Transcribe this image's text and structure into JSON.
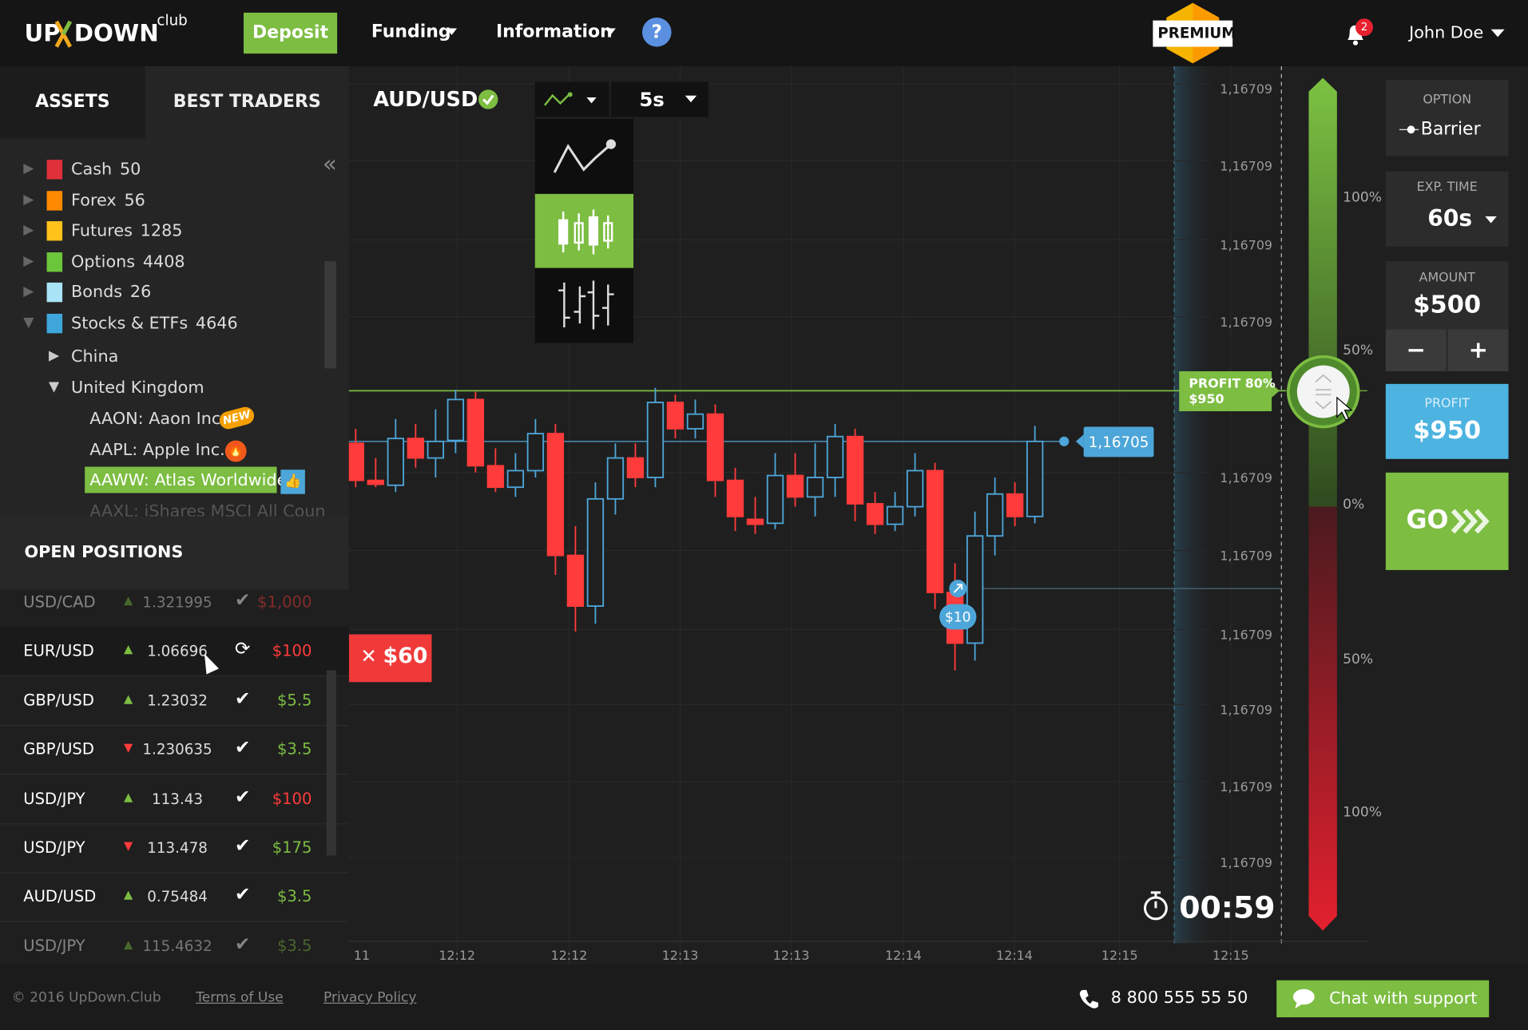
{
  "header": {
    "logo": [
      "UP",
      "DOWN"
    ],
    "logo_suffix": "club",
    "deposit": "Deposit",
    "nav": [
      "Funding",
      "Information"
    ],
    "help": "?",
    "premium": "PREMIUM",
    "notifications": 2,
    "user": "John Doe"
  },
  "sidebar": {
    "tabs": [
      "ASSETS",
      "BEST TRADERS"
    ],
    "categories": [
      {
        "name": "Cash",
        "count": 50,
        "color": "#e0303a"
      },
      {
        "name": "Forex",
        "count": 56,
        "color": "#ff8a00"
      },
      {
        "name": "Futures",
        "count": 1285,
        "color": "#ffc21a"
      },
      {
        "name": "Options",
        "count": 4408,
        "color": "#6cc63c"
      },
      {
        "name": "Bonds",
        "count": 26,
        "color": "#a8e4f5"
      },
      {
        "name": "Stocks & ETFs",
        "count": 4646,
        "color": "#3fa6dc"
      }
    ],
    "regions": [
      "China",
      "United Kingdom"
    ],
    "assets": [
      "AAON: Aaon Inc.",
      "AAPL: Apple Inc.",
      "AAWW: Atlas Worldwide",
      "AAXL: iShares MSCI All Coun"
    ],
    "new_badge": "NEW",
    "positions_title": "OPEN POSITIONS",
    "positions": [
      {
        "pair": "USD/CAD",
        "direction": "up",
        "price": 1.321995,
        "status": "done",
        "amount": "$1,000",
        "color": "#ff3b3b"
      },
      {
        "pair": "EUR/USD",
        "direction": "up",
        "price": 1.06696,
        "status": "pending",
        "amount": "$100",
        "color": "#ff3b3b"
      },
      {
        "pair": "GBP/USD",
        "direction": "up",
        "price": 1.23032,
        "status": "done",
        "amount": "$5.5",
        "color": "#7cbd42"
      },
      {
        "pair": "GBP/USD",
        "direction": "down",
        "price": 1.230635,
        "status": "done",
        "amount": "$3.5",
        "color": "#7cbd42"
      },
      {
        "pair": "USD/JPY",
        "direction": "up",
        "price": 113.43,
        "status": "done",
        "amount": "$100",
        "color": "#ff3b3b"
      },
      {
        "pair": "USD/JPY",
        "direction": "down",
        "price": 113.478,
        "status": "done",
        "amount": "$175",
        "color": "#7cbd42"
      },
      {
        "pair": "AUD/USD",
        "direction": "up",
        "price": 0.75484,
        "status": "done",
        "amount": "$3.5",
        "color": "#7cbd42"
      },
      {
        "pair": "USD/JPY",
        "direction": "up",
        "price": 115.4632,
        "status": "done",
        "amount": "$3.5",
        "color": "#7cbd42"
      }
    ]
  },
  "chart": {
    "symbol": "AUD/USD",
    "interval": "5s",
    "price_labels": [
      "1,16709",
      "1,16709",
      "1,16709",
      "1,16709",
      "1,16709",
      "1,16709",
      "1,16709",
      "1,16709",
      "1,16709",
      "1,16709"
    ],
    "current_price": "1,16705",
    "profit_label": "PROFIT 80%",
    "profit_amount": "$950",
    "trade_amount": "$10",
    "close_amount": "$60",
    "timer": "00:59",
    "time_labels": [
      "11",
      "12:12",
      "12:12",
      "12:13",
      "12:13",
      "12:14",
      "12:14",
      "12:15",
      "12:15"
    ],
    "ylim": [
      0,
      880
    ],
    "candles": [
      {
        "open": 505,
        "high": 520,
        "low": 460,
        "close": 467
      },
      {
        "open": 467,
        "high": 490,
        "low": 460,
        "close": 463
      },
      {
        "open": 462,
        "high": 530,
        "low": 455,
        "close": 510
      },
      {
        "open": 510,
        "high": 525,
        "low": 480,
        "close": 490
      },
      {
        "open": 490,
        "high": 540,
        "low": 470,
        "close": 507
      },
      {
        "open": 508,
        "high": 560,
        "low": 495,
        "close": 550
      },
      {
        "open": 550,
        "high": 558,
        "low": 475,
        "close": 482
      },
      {
        "open": 482,
        "high": 500,
        "low": 455,
        "close": 460
      },
      {
        "open": 460,
        "high": 495,
        "low": 450,
        "close": 477
      },
      {
        "open": 477,
        "high": 530,
        "low": 470,
        "close": 515
      },
      {
        "open": 515,
        "high": 525,
        "low": 370,
        "close": 390
      },
      {
        "open": 390,
        "high": 420,
        "low": 312,
        "close": 338
      },
      {
        "open": 338,
        "high": 465,
        "low": 320,
        "close": 448
      },
      {
        "open": 448,
        "high": 505,
        "low": 432,
        "close": 490
      },
      {
        "open": 490,
        "high": 505,
        "low": 460,
        "close": 470
      },
      {
        "open": 470,
        "high": 562,
        "low": 460,
        "close": 547
      },
      {
        "open": 547,
        "high": 555,
        "low": 510,
        "close": 520
      },
      {
        "open": 520,
        "high": 550,
        "low": 510,
        "close": 535
      },
      {
        "open": 535,
        "high": 545,
        "low": 450,
        "close": 467
      },
      {
        "open": 467,
        "high": 480,
        "low": 415,
        "close": 430
      },
      {
        "open": 427,
        "high": 450,
        "low": 412,
        "close": 422
      },
      {
        "open": 423,
        "high": 495,
        "low": 417,
        "close": 472
      },
      {
        "open": 472,
        "high": 495,
        "low": 440,
        "close": 450
      },
      {
        "open": 450,
        "high": 505,
        "low": 430,
        "close": 470
      },
      {
        "open": 470,
        "high": 525,
        "low": 450,
        "close": 512
      },
      {
        "open": 512,
        "high": 520,
        "low": 425,
        "close": 443
      },
      {
        "open": 443,
        "high": 455,
        "low": 412,
        "close": 422
      },
      {
        "open": 422,
        "high": 455,
        "low": 415,
        "close": 440
      },
      {
        "open": 440,
        "high": 495,
        "low": 430,
        "close": 477
      },
      {
        "open": 477,
        "high": 485,
        "low": 335,
        "close": 352
      },
      {
        "open": 352,
        "high": 382,
        "low": 272,
        "close": 300
      },
      {
        "open": 300,
        "high": 435,
        "low": 282,
        "close": 410
      },
      {
        "open": 410,
        "high": 470,
        "low": 390,
        "close": 453
      },
      {
        "open": 453,
        "high": 465,
        "low": 420,
        "close": 430
      },
      {
        "open": 430,
        "high": 523,
        "low": 423,
        "close": 507
      }
    ]
  },
  "slider": {
    "labels": [
      "100%",
      "50%",
      "0%",
      "50%",
      "100%"
    ]
  },
  "panel": {
    "option_label": "OPTION",
    "option": "Barrier",
    "exp_label": "EXP. TIME",
    "exp": "60s",
    "amount_label": "AMOUNT",
    "amount": "$500",
    "minus": "−",
    "plus": "+",
    "profit_label": "PROFIT",
    "profit": "$950",
    "go": "GO"
  },
  "footer": {
    "copyright": "© 2016 UpDown.Club",
    "links": [
      "Terms of Use",
      "Privacy Policy"
    ],
    "phone": "8 800 555 55 50",
    "chat": "Chat with support"
  }
}
